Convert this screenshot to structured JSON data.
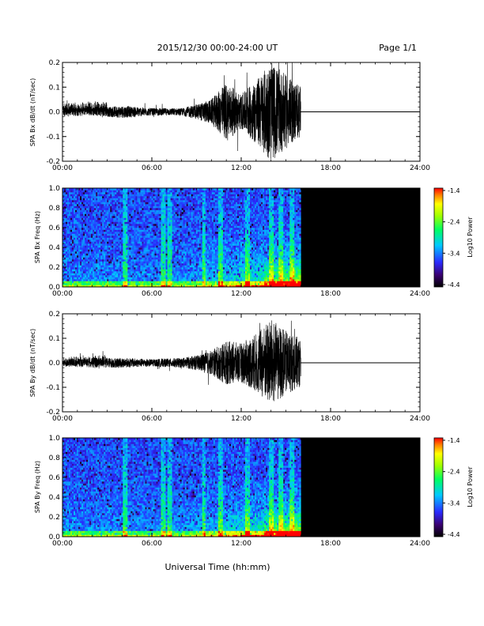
{
  "header": {
    "title": "2015/12/30  00:00-24:00 UT",
    "page": "Page 1/1"
  },
  "footer": {
    "xlabel": "Universal Time (hh:mm)"
  },
  "colorbar": {
    "label": "Log10 Power",
    "ticks": [
      "-1.4",
      "-2.4",
      "-3.4",
      "-4.4"
    ],
    "range": [
      -4.4,
      -1.4
    ]
  },
  "chart_data": [
    {
      "type": "line",
      "ylabel": "SPA Bx dB/dt (nT/sec)",
      "xlim": [
        0,
        24
      ],
      "ylim": [
        -0.2,
        0.2
      ],
      "xticks": [
        "00:00",
        "06:00",
        "12:00",
        "18:00",
        "24:00"
      ],
      "yticks": [
        "0.2",
        "0.1",
        "0.0",
        "-0.1",
        "-0.2"
      ],
      "data_end_hour": 16,
      "amplitude_envelope": {
        "hours": [
          0,
          2,
          4,
          6,
          8,
          9,
          10,
          11,
          12,
          13,
          14,
          15,
          16
        ],
        "amplitude": [
          0.02,
          0.015,
          0.025,
          0.015,
          0.015,
          0.03,
          0.05,
          0.12,
          0.07,
          0.13,
          0.2,
          0.15,
          0.1
        ]
      }
    },
    {
      "type": "heatmap",
      "ylabel": "SPA Bx Freq (Hz)",
      "xlim": [
        0,
        24
      ],
      "ylim": [
        0.0,
        1.0
      ],
      "xticks": [
        "00:00",
        "06:00",
        "12:00",
        "18:00",
        "24:00"
      ],
      "yticks": [
        "1.0",
        "0.8",
        "0.6",
        "0.4",
        "0.2",
        "0.0"
      ],
      "data_end_hour": 16
    },
    {
      "type": "line",
      "ylabel": "SPA By dB/dt (nT/sec)",
      "xlim": [
        0,
        24
      ],
      "ylim": [
        -0.2,
        0.2
      ],
      "xticks": [
        "00:00",
        "06:00",
        "12:00",
        "18:00",
        "24:00"
      ],
      "yticks": [
        "0.2",
        "0.1",
        "0.0",
        "-0.1",
        "-0.2"
      ],
      "data_end_hour": 16,
      "amplitude_envelope": {
        "hours": [
          0,
          2,
          4,
          6,
          8,
          9,
          10,
          11,
          12,
          13,
          14,
          15,
          16
        ],
        "amplitude": [
          0.015,
          0.02,
          0.02,
          0.015,
          0.02,
          0.03,
          0.05,
          0.09,
          0.08,
          0.12,
          0.18,
          0.13,
          0.1
        ]
      }
    },
    {
      "type": "heatmap",
      "ylabel": "SPA By Freq (Hz)",
      "xlim": [
        0,
        24
      ],
      "ylim": [
        0.0,
        1.0
      ],
      "xticks": [
        "00:00",
        "06:00",
        "12:00",
        "18:00",
        "24:00"
      ],
      "yticks": [
        "1.0",
        "0.8",
        "0.6",
        "0.4",
        "0.2",
        "0.0"
      ],
      "data_end_hour": 16
    }
  ]
}
